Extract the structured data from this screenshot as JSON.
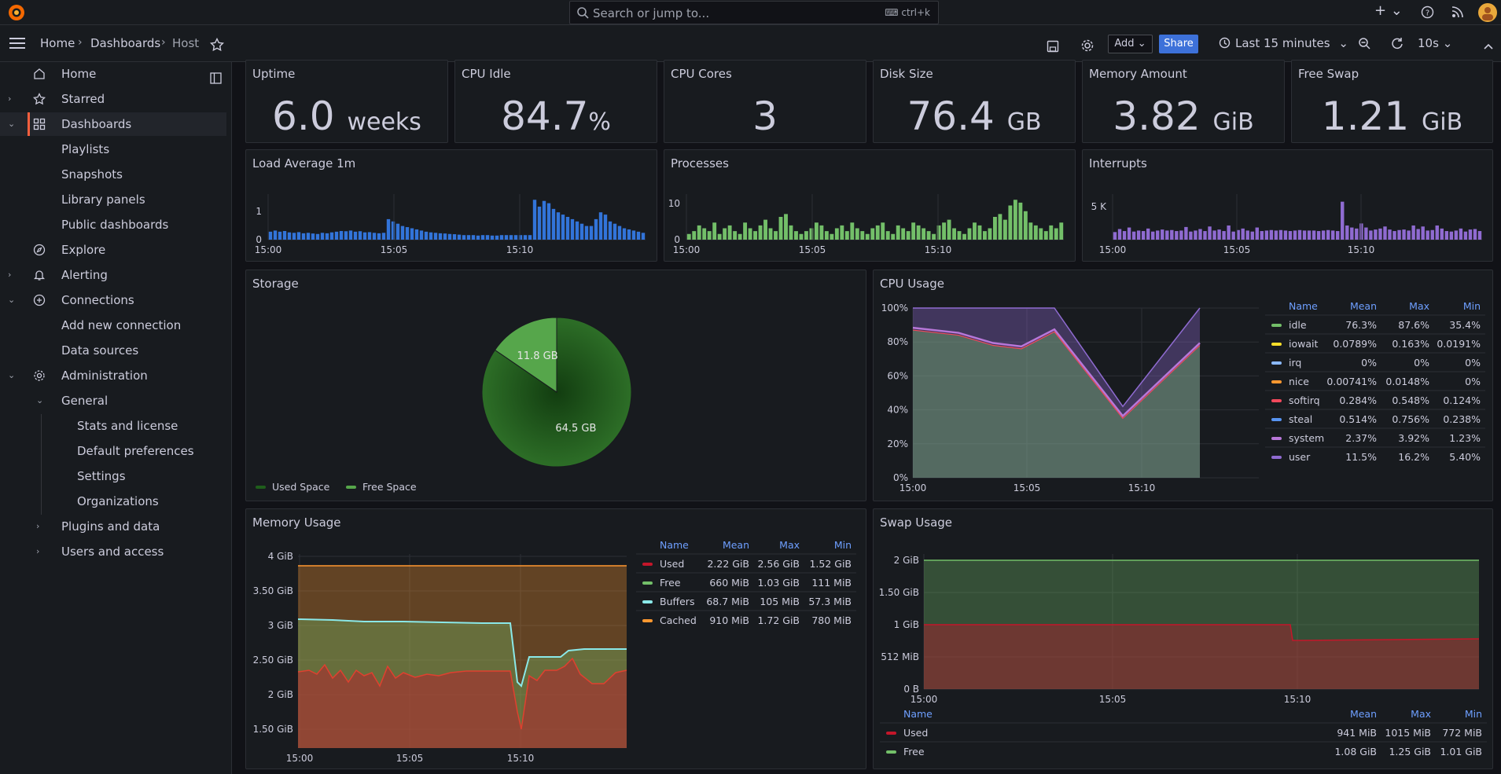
{
  "search": {
    "placeholder": "Search or jump to...",
    "shortcut": "ctrl+k"
  },
  "breadcrumbs": [
    "Home",
    "Dashboards",
    "Host"
  ],
  "toolbar": {
    "add_label": "Add",
    "share_label": "Share",
    "time_range": "Last 15 minutes",
    "refresh_interval": "10s"
  },
  "sidebar": {
    "items": [
      {
        "label": "Home"
      },
      {
        "label": "Starred"
      },
      {
        "label": "Dashboards"
      },
      {
        "label": "Playlists"
      },
      {
        "label": "Snapshots"
      },
      {
        "label": "Library panels"
      },
      {
        "label": "Public dashboards"
      },
      {
        "label": "Explore"
      },
      {
        "label": "Alerting"
      },
      {
        "label": "Connections"
      },
      {
        "label": "Add new connection"
      },
      {
        "label": "Data sources"
      },
      {
        "label": "Administration"
      },
      {
        "label": "General"
      },
      {
        "label": "Stats and license"
      },
      {
        "label": "Default preferences"
      },
      {
        "label": "Settings"
      },
      {
        "label": "Organizations"
      },
      {
        "label": "Plugins and data"
      },
      {
        "label": "Users and access"
      }
    ]
  },
  "stats": [
    {
      "title": "Uptime",
      "value": "6.0",
      "unit": "weeks"
    },
    {
      "title": "CPU Idle",
      "value": "84.7",
      "unit": "%"
    },
    {
      "title": "CPU Cores",
      "value": "3",
      "unit": ""
    },
    {
      "title": "Disk Size",
      "value": "76.4",
      "unit": "GB"
    },
    {
      "title": "Memory Amount",
      "value": "3.82",
      "unit": "GiB"
    },
    {
      "title": "Free Swap",
      "value": "1.21",
      "unit": "GiB"
    }
  ],
  "panels": {
    "load": "Load Average 1m",
    "processes": "Processes",
    "interrupts": "Interrupts",
    "storage": "Storage",
    "cpu": "CPU Usage",
    "memory": "Memory Usage",
    "swap": "Swap Usage"
  },
  "chart_data": [
    {
      "type": "bar",
      "title": "Load Average 1m",
      "color": "#3274d9",
      "x_ticks": [
        "15:00",
        "15:05",
        "15:10"
      ],
      "y_ticks": [
        "0",
        "1"
      ],
      "ylim": [
        0,
        2
      ],
      "values": [
        0.35,
        0.4,
        0.35,
        0.38,
        0.32,
        0.3,
        0.33,
        0.28,
        0.3,
        0.27,
        0.25,
        0.3,
        0.28,
        0.32,
        0.35,
        0.38,
        0.37,
        0.4,
        0.35,
        0.37,
        0.32,
        0.33,
        0.3,
        0.28,
        0.3,
        0.9,
        0.8,
        0.7,
        0.6,
        0.55,
        0.5,
        0.45,
        0.4,
        0.35,
        0.32,
        0.3,
        0.28,
        0.27,
        0.25,
        0.24,
        0.22,
        0.2,
        0.2,
        0.2,
        0.18,
        0.2,
        0.2,
        0.18,
        0.18,
        0.2,
        0.2,
        0.2,
        0.2,
        0.2,
        0.2,
        0.2,
        1.75,
        1.45,
        1.7,
        1.6,
        1.35,
        1.2,
        1.1,
        1.0,
        0.9,
        0.8,
        0.7,
        0.6,
        0.6,
        0.9,
        1.2,
        1.1,
        0.8,
        0.7,
        0.6,
        0.5,
        0.45,
        0.4,
        0.35,
        0.3
      ]
    },
    {
      "type": "bar",
      "title": "Processes",
      "color": "#73bf69",
      "x_ticks": [
        "15:00",
        "15:05",
        "15:10"
      ],
      "y_ticks": [
        "0",
        "10"
      ],
      "ylim": [
        0,
        16
      ],
      "values": [
        2,
        3,
        5,
        4,
        3,
        6,
        2,
        4,
        5,
        3,
        2,
        6,
        4,
        3,
        5,
        7,
        4,
        3,
        8,
        9,
        5,
        3,
        2,
        3,
        4,
        6,
        5,
        3,
        2,
        4,
        5,
        3,
        6,
        4,
        3,
        2,
        4,
        5,
        6,
        3,
        2,
        5,
        4,
        3,
        6,
        5,
        4,
        3,
        2,
        5,
        6,
        7,
        4,
        3,
        2,
        4,
        6,
        5,
        3,
        4,
        8,
        9,
        7,
        12,
        14,
        13,
        10,
        6,
        5,
        4,
        3,
        5,
        4,
        6
      ]
    },
    {
      "type": "bar",
      "title": "Interrupts",
      "color": "#8f6bd1",
      "x_ticks": [
        "15:00",
        "15:05",
        "15:10"
      ],
      "y_ticks": [
        "5 K"
      ],
      "ylim": [
        0,
        9000
      ],
      "values": [
        1500,
        2100,
        1700,
        2400,
        1600,
        1800,
        1700,
        2200,
        1600,
        1800,
        2000,
        1800,
        1900,
        1700,
        1800,
        2500,
        1600,
        1800,
        2100,
        1700,
        2600,
        1800,
        2000,
        1700,
        2800,
        1600,
        1900,
        2200,
        1800,
        1600,
        2400,
        1700,
        1800,
        1900,
        1800,
        1900,
        1800,
        1700,
        1800,
        1900,
        1800,
        1800,
        1800,
        1700,
        1800,
        1900,
        1800,
        1700,
        7500,
        2800,
        2400,
        2200,
        3200,
        2400,
        1800,
        2000,
        2200,
        2600,
        2000,
        1700,
        1900,
        2000,
        1800,
        2800,
        2100,
        2600,
        1800,
        1900,
        2800,
        2200,
        1700,
        1600,
        1800,
        2200,
        1600,
        2000,
        2100,
        1700
      ]
    },
    {
      "type": "pie",
      "title": "Storage",
      "series": [
        {
          "name": "Used Space",
          "value": 64.5,
          "label": "64.5 GB",
          "color": "#1f5e1b"
        },
        {
          "name": "Free Space",
          "value": 11.8,
          "label": "11.8 GB",
          "color": "#56a64b"
        }
      ]
    },
    {
      "type": "area",
      "title": "CPU Usage",
      "x_ticks": [
        "15:00",
        "15:05",
        "15:10"
      ],
      "y_ticks": [
        "0%",
        "20%",
        "40%",
        "60%",
        "80%",
        "100%"
      ],
      "ylim": [
        0,
        100
      ],
      "legend_headers": [
        "Name",
        "Mean",
        "Max",
        "Min"
      ],
      "legend": [
        {
          "name": "idle",
          "mean": "76.3%",
          "max": "87.6%",
          "min": "35.4%",
          "color": "#73bf69"
        },
        {
          "name": "iowait",
          "mean": "0.0789%",
          "max": "0.163%",
          "min": "0.0191%",
          "color": "#fade2a"
        },
        {
          "name": "irq",
          "mean": "0%",
          "max": "0%",
          "min": "0%",
          "color": "#8ab8ff"
        },
        {
          "name": "nice",
          "mean": "0.00741%",
          "max": "0.0148%",
          "min": "0%",
          "color": "#ff9830"
        },
        {
          "name": "softirq",
          "mean": "0.284%",
          "max": "0.548%",
          "min": "0.124%",
          "color": "#f2495c"
        },
        {
          "name": "steal",
          "mean": "0.514%",
          "max": "0.756%",
          "min": "0.238%",
          "color": "#5794f2"
        },
        {
          "name": "system",
          "mean": "2.37%",
          "max": "3.92%",
          "min": "1.23%",
          "color": "#b877d9"
        },
        {
          "name": "user",
          "mean": "11.5%",
          "max": "16.2%",
          "min": "5.40%",
          "color": "#8f6bd1"
        }
      ],
      "idle_values": [
        87,
        84,
        78,
        76,
        86,
        35,
        78
      ],
      "total_values": [
        100,
        100,
        100,
        100,
        100,
        42,
        100
      ]
    },
    {
      "type": "area",
      "title": "Memory Usage",
      "x_ticks": [
        "15:00",
        "15:05",
        "15:10"
      ],
      "y_ticks": [
        "1.50 GiB",
        "2 GiB",
        "2.50 GiB",
        "3 GiB",
        "3.50 GiB",
        "4 GiB"
      ],
      "legend_headers": [
        "Name",
        "Mean",
        "Max",
        "Min"
      ],
      "legend": [
        {
          "name": "Used",
          "mean": "2.22 GiB",
          "max": "2.56 GiB",
          "min": "1.52 GiB",
          "color": "#c4162a"
        },
        {
          "name": "Free",
          "mean": "660 MiB",
          "max": "1.03 GiB",
          "min": "111 MiB",
          "color": "#73bf69"
        },
        {
          "name": "Buffers",
          "mean": "68.7 MiB",
          "max": "105 MiB",
          "min": "57.3 MiB",
          "color": "#8ae8e8"
        },
        {
          "name": "Cached",
          "mean": "910 MiB",
          "max": "1.72 GiB",
          "min": "780 MiB",
          "color": "#ff9830"
        }
      ]
    },
    {
      "type": "area",
      "title": "Swap Usage",
      "x_ticks": [
        "15:00",
        "15:05",
        "15:10"
      ],
      "y_ticks": [
        "0 B",
        "512 MiB",
        "1 GiB",
        "1.50 GiB",
        "2 GiB"
      ],
      "legend_headers": [
        "Name",
        "Mean",
        "Max",
        "Min"
      ],
      "legend": [
        {
          "name": "Used",
          "mean": "941 MiB",
          "max": "1015 MiB",
          "min": "772 MiB",
          "color": "#c4162a"
        },
        {
          "name": "Free",
          "mean": "1.08 GiB",
          "max": "1.25 GiB",
          "min": "1.01 GiB",
          "color": "#73bf69"
        }
      ]
    }
  ]
}
